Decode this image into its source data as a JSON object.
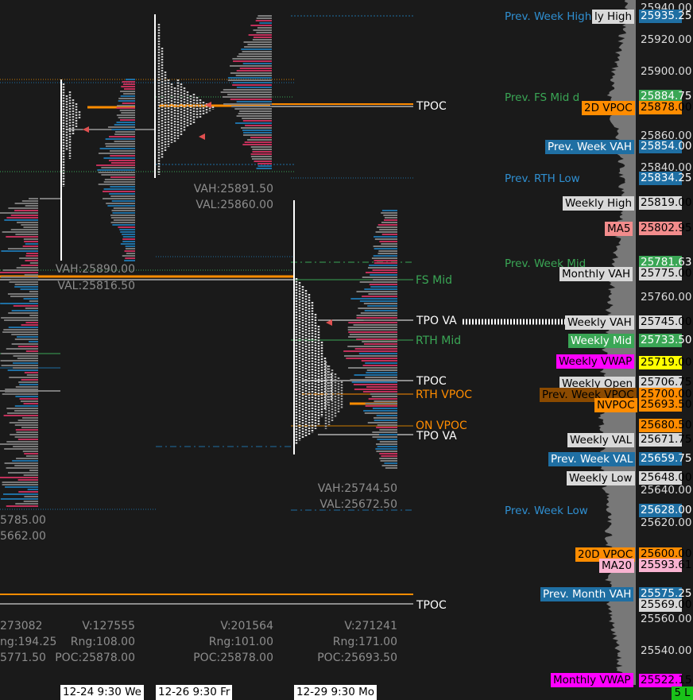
{
  "price_axis": {
    "ticks": [
      "25940.00",
      "25920.00",
      "25900.00",
      "25860.00",
      "25840.00",
      "25760.00",
      "25640.00",
      "25620.00",
      "25560.00",
      "25540.00"
    ],
    "markers": [
      {
        "price": "25935.25",
        "bg": "#1f6fa3",
        "fg": "#ffffff"
      },
      {
        "price": "25884.75",
        "bg": "#3aa655",
        "fg": "#ffffff"
      },
      {
        "price": "25878.00",
        "bg": "#ff8c00",
        "fg": "#000000"
      },
      {
        "price": "25854.00",
        "bg": "#1f6fa3",
        "fg": "#ffffff"
      },
      {
        "price": "25834.25",
        "bg": "#1f6fa3",
        "fg": "#ffffff"
      },
      {
        "price": "25819.00",
        "bg": "#d9d9d9",
        "fg": "#000000"
      },
      {
        "price": "25802.95",
        "bg": "#f28c8c",
        "fg": "#000000"
      },
      {
        "price": "25781.63",
        "bg": "#3aa655",
        "fg": "#ffffff"
      },
      {
        "price": "25775.00",
        "bg": "#d9d9d9",
        "fg": "#000000"
      },
      {
        "price": "25745.00",
        "bg": "#d9d9d9",
        "fg": "#000000"
      },
      {
        "price": "25733.50",
        "bg": "#3aa655",
        "fg": "#ffffff"
      },
      {
        "price": "25719.00",
        "bg": "#ffff00",
        "fg": "#000000"
      },
      {
        "price": "25706.75",
        "bg": "#d9d9d9",
        "fg": "#000000"
      },
      {
        "price": "25700.00",
        "bg": "#ff8c00",
        "fg": "#000000"
      },
      {
        "price": "25693.50",
        "bg": "#ff8c00",
        "fg": "#000000"
      },
      {
        "price": "25680.50",
        "bg": "#ff8c00",
        "fg": "#000000"
      },
      {
        "price": "25671.75",
        "bg": "#d9d9d9",
        "fg": "#000000"
      },
      {
        "price": "25659.75",
        "bg": "#1f6fa3",
        "fg": "#ffffff"
      },
      {
        "price": "25648.00",
        "bg": "#d9d9d9",
        "fg": "#000000"
      },
      {
        "price": "25628.00",
        "bg": "#1f6fa3",
        "fg": "#ffffff"
      },
      {
        "price": "25600.00",
        "bg": "#ff8c00",
        "fg": "#000000"
      },
      {
        "price": "25593.61",
        "bg": "#f9b3d1",
        "fg": "#000000"
      },
      {
        "price": "25575.25",
        "bg": "#1f6fa3",
        "fg": "#ffffff"
      },
      {
        "price": "25569.00",
        "bg": "#d9d9d9",
        "fg": "#000000"
      },
      {
        "price": "25522.15",
        "bg": "#ff00ff",
        "fg": "#000000"
      }
    ],
    "badge": "5 L"
  },
  "level_labels": [
    {
      "text": "Prev. Week High",
      "bg": "transparent",
      "fg": "#2f8fd1"
    },
    {
      "text": "ly High",
      "bg": "#d9d9d9",
      "fg": "#000000"
    },
    {
      "text": "Prev. FS Mid d",
      "bg": "transparent",
      "fg": "#3aa655"
    },
    {
      "text": "2D VPOC",
      "bg": "#ff8c00",
      "fg": "#000000"
    },
    {
      "text": "Prev. Week VAH",
      "bg": "#1f6fa3",
      "fg": "#ffffff"
    },
    {
      "text": "Prev. RTH Low",
      "bg": "transparent",
      "fg": "#2f8fd1"
    },
    {
      "text": "Weekly High",
      "bg": "#d9d9d9",
      "fg": "#000000"
    },
    {
      "text": "MA5",
      "bg": "#f28c8c",
      "fg": "#000000"
    },
    {
      "text": "Prev. Week Mid",
      "bg": "transparent",
      "fg": "#3aa655"
    },
    {
      "text": "Monthly VAH",
      "bg": "#d9d9d9",
      "fg": "#000000"
    },
    {
      "text": "Weekly VAH",
      "bg": "#d9d9d9",
      "fg": "#000000"
    },
    {
      "text": "Weekly Mid",
      "bg": "#3aa655",
      "fg": "#ffffff"
    },
    {
      "text": "Weekly VWAP",
      "bg": "#ff00ff",
      "fg": "#000000"
    },
    {
      "text": "Weekly Open",
      "bg": "#d9d9d9",
      "fg": "#000000"
    },
    {
      "text": "Prev. Week VPOC",
      "bg": "#8b4a00",
      "fg": "#000000"
    },
    {
      "text": "NVPOC",
      "bg": "#ff8c00",
      "fg": "#000000"
    },
    {
      "text": "Weekly VAL",
      "bg": "#d9d9d9",
      "fg": "#000000"
    },
    {
      "text": "Prev. Week VAL",
      "bg": "#1f6fa3",
      "fg": "#ffffff"
    },
    {
      "text": "Weekly Low",
      "bg": "#d9d9d9",
      "fg": "#000000"
    },
    {
      "text": "Prev. Week Low",
      "bg": "transparent",
      "fg": "#2f8fd1"
    },
    {
      "text": "20D VPOC",
      "bg": "#ff8c00",
      "fg": "#000000"
    },
    {
      "text": "MA20",
      "bg": "#f9b3d1",
      "fg": "#000000"
    },
    {
      "text": "Prev. Month VAH",
      "bg": "#1f6fa3",
      "fg": "#ffffff"
    },
    {
      "text": "Monthly VWAP",
      "bg": "#ff00ff",
      "fg": "#000000"
    }
  ],
  "inline_labels": {
    "tpoc_top": "TPOC",
    "fs_mid": "FS Mid",
    "tpo_va_top": "TPO VA",
    "rth_mid": "RTH Mid",
    "tpoc_mid": "TPOC",
    "rth_vpoc": "RTH VPOC",
    "on_vpoc": "ON VPOC",
    "tpo_va_bottom": "TPO VA",
    "tpoc_bottom": "TPOC"
  },
  "sessions": [
    {
      "vah": "",
      "val": "",
      "v": "273082",
      "rng": "194.25",
      "poc": "25771.50",
      "extra1": "5785.00",
      "extra2": "5662.00"
    },
    {
      "vah": "VAH:25890.00",
      "val": "VAL:25816.50",
      "v": "V:127555",
      "rng": "Rng:108.00",
      "poc": "POC:25878.00"
    },
    {
      "vah": "VAH:25891.50",
      "val": "VAL:25860.00",
      "v": "V:201564",
      "rng": "Rng:101.00",
      "poc": "POC:25878.00"
    },
    {
      "vah": "VAH:25744.50",
      "val": "VAL:25672.50",
      "v": "V:271241",
      "rng": "Rng:171.00",
      "poc": "POC:25693.50"
    }
  ],
  "first_stat_labels": {
    "v": "273082",
    "rng": "ng:194.25",
    "poc": "5771.50"
  },
  "time_axis": [
    "12-24  9:30 We",
    "12-26  9:30 Fr",
    "12-29  9:30 Mo"
  ]
}
